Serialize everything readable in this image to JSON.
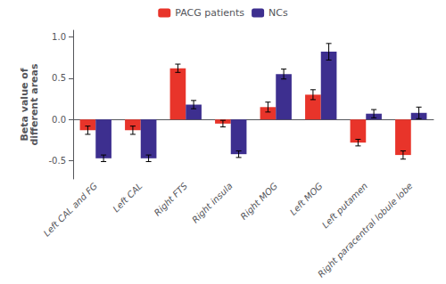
{
  "chart_data": {
    "type": "bar",
    "ylabel": "Beta value of\ndifferent areas",
    "categories": [
      "Left CAL and FG",
      "Left CAL",
      "Right FTS",
      "Right insula",
      "Right MOG",
      "Left MOG",
      "Left putamen",
      "Right paracentral lobule lobe"
    ],
    "series": [
      {
        "name": "PACG patients",
        "color": "#e8342a",
        "values": [
          -0.13,
          -0.13,
          0.62,
          -0.05,
          0.15,
          0.3,
          -0.28,
          -0.43
        ],
        "errors": [
          0.05,
          0.05,
          0.05,
          0.04,
          0.06,
          0.06,
          0.04,
          0.05
        ]
      },
      {
        "name": "NCs",
        "color": "#3d2f8f",
        "values": [
          -0.47,
          -0.47,
          0.18,
          -0.42,
          0.55,
          0.82,
          0.07,
          0.08
        ],
        "errors": [
          0.04,
          0.04,
          0.05,
          0.04,
          0.06,
          0.1,
          0.05,
          0.07
        ]
      }
    ],
    "ylim": [
      -0.72,
      1.08
    ],
    "yticks": [
      -0.5,
      {
        "value": 0.0,
        "label": "0.0"
      },
      0.5,
      {
        "value": 1.0,
        "label": "1.0"
      }
    ],
    "grid": false,
    "legend": "upper center"
  }
}
